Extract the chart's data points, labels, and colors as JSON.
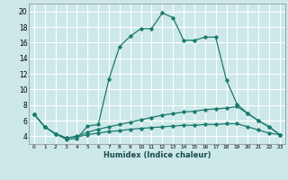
{
  "xlabel": "Humidex (Indice chaleur)",
  "ylabel": "",
  "background_color": "#cce8e8",
  "grid_color": "#ffffff",
  "line_color": "#1a7a6e",
  "xlim": [
    -0.5,
    23.5
  ],
  "ylim": [
    3.0,
    21.0
  ],
  "xticks": [
    0,
    1,
    2,
    3,
    4,
    5,
    6,
    7,
    8,
    9,
    10,
    11,
    12,
    13,
    14,
    15,
    16,
    17,
    18,
    19,
    20,
    21,
    22,
    23
  ],
  "yticks": [
    4,
    6,
    8,
    10,
    12,
    14,
    16,
    18,
    20
  ],
  "series1_x": [
    0,
    1,
    2,
    3,
    4,
    5,
    6,
    7,
    8,
    9,
    10,
    11,
    12,
    13,
    14,
    15,
    16,
    17,
    18,
    19,
    20,
    21,
    22,
    23
  ],
  "series1_y": [
    6.8,
    5.2,
    4.3,
    3.6,
    3.7,
    5.3,
    5.5,
    11.3,
    15.5,
    16.8,
    17.8,
    17.8,
    19.8,
    19.2,
    16.3,
    16.3,
    16.7,
    16.7,
    11.2,
    8.1,
    6.9,
    6.0,
    5.2,
    4.2
  ],
  "series2_x": [
    0,
    1,
    2,
    3,
    4,
    5,
    6,
    7,
    8,
    9,
    10,
    11,
    12,
    13,
    14,
    15,
    16,
    17,
    18,
    19,
    20,
    21,
    22,
    23
  ],
  "series2_y": [
    6.8,
    5.2,
    4.3,
    3.8,
    4.0,
    4.5,
    4.9,
    5.2,
    5.5,
    5.8,
    6.1,
    6.4,
    6.7,
    6.9,
    7.1,
    7.2,
    7.4,
    7.5,
    7.6,
    7.8,
    6.9,
    6.0,
    5.2,
    4.2
  ],
  "series3_x": [
    0,
    1,
    2,
    3,
    4,
    5,
    6,
    7,
    8,
    9,
    10,
    11,
    12,
    13,
    14,
    15,
    16,
    17,
    18,
    19,
    20,
    21,
    22,
    23
  ],
  "series3_y": [
    6.8,
    5.2,
    4.3,
    3.8,
    3.9,
    4.2,
    4.4,
    4.6,
    4.7,
    4.9,
    5.0,
    5.1,
    5.2,
    5.3,
    5.4,
    5.4,
    5.5,
    5.5,
    5.6,
    5.6,
    5.2,
    4.8,
    4.4,
    4.2
  ]
}
